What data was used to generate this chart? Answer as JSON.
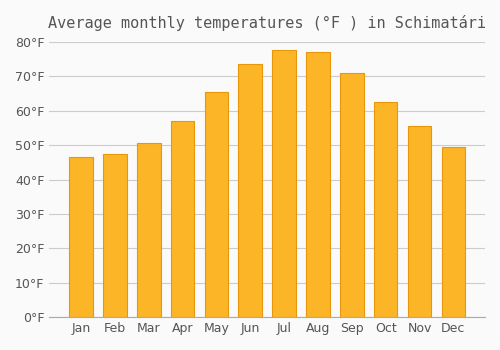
{
  "title": "Average monthly temperatures (°F ) in Schimatári",
  "months": [
    "Jan",
    "Feb",
    "Mar",
    "Apr",
    "May",
    "Jun",
    "Jul",
    "Aug",
    "Sep",
    "Oct",
    "Nov",
    "Dec"
  ],
  "values": [
    46.5,
    47.5,
    50.5,
    57.0,
    65.5,
    73.5,
    77.5,
    77.0,
    71.0,
    62.5,
    55.5,
    49.5
  ],
  "bar_color": "#FDB528",
  "bar_edge_color": "#E8960A",
  "background_color": "#FAFAFA",
  "grid_color": "#CCCCCC",
  "text_color": "#555555",
  "ylim": [
    0,
    80
  ],
  "yticks": [
    0,
    10,
    20,
    30,
    40,
    50,
    60,
    70,
    80
  ],
  "title_fontsize": 11,
  "tick_fontsize": 9
}
